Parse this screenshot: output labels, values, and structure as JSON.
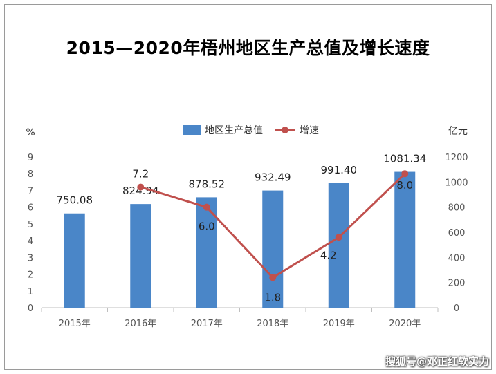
{
  "chart_data": {
    "type": "bar",
    "title": "2015—2020年梧州地区生产总值及增长速度",
    "categories": [
      "2015年",
      "2016年",
      "2017年",
      "2018年",
      "2019年",
      "2020年"
    ],
    "series": [
      {
        "name": "地区生产总值",
        "type": "bar",
        "axis": "right",
        "color": "#4a86c8",
        "values": [
          750.08,
          824.94,
          878.52,
          932.49,
          991.4,
          1081.34
        ],
        "labels": [
          "750.08",
          "824.94",
          "878.52",
          "932.49",
          "991.40",
          "1081.34"
        ]
      },
      {
        "name": "增速",
        "type": "line",
        "axis": "left",
        "color": "#c0504d",
        "values": [
          null,
          7.2,
          6.0,
          1.8,
          4.2,
          8.0
        ],
        "labels": [
          "",
          "7.2",
          "6.0",
          "1.8",
          "4.2",
          "8.0"
        ]
      }
    ],
    "left_axis": {
      "unit": "%",
      "ylim": [
        0,
        9
      ],
      "ticks": [
        "0",
        "1",
        "2",
        "3",
        "4",
        "5",
        "6",
        "7",
        "8",
        "9"
      ]
    },
    "right_axis": {
      "unit": "亿元",
      "ylim": [
        0,
        1200
      ],
      "ticks": [
        "0",
        "200",
        "400",
        "600",
        "800",
        "1000",
        "1200"
      ]
    },
    "legend_position": "top-center",
    "grid": false
  },
  "watermark": "搜狐号@邓正红软实力"
}
